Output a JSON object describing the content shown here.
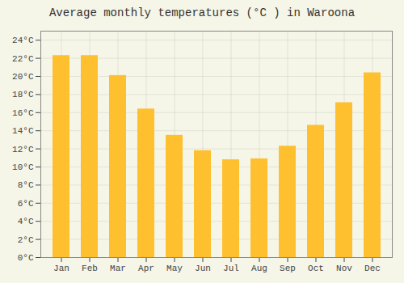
{
  "chart_data": {
    "type": "bar",
    "title": "Average monthly temperatures (°C ) in Waroona",
    "categories": [
      "Jan",
      "Feb",
      "Mar",
      "Apr",
      "May",
      "Jun",
      "Jul",
      "Aug",
      "Sep",
      "Oct",
      "Nov",
      "Dec"
    ],
    "values": [
      22.3,
      22.3,
      20.1,
      16.4,
      13.5,
      11.8,
      10.8,
      10.9,
      12.3,
      14.6,
      17.1,
      20.4
    ],
    "color": "#FFC030",
    "ylim": [
      0,
      25
    ],
    "yticks": [
      {
        "value": 0,
        "label": "0°C"
      },
      {
        "value": 2,
        "label": "2°C"
      },
      {
        "value": 4,
        "label": "4°C"
      },
      {
        "value": 6,
        "label": "6°C"
      },
      {
        "value": 8,
        "label": "8°C"
      },
      {
        "value": 10,
        "label": "10°C"
      },
      {
        "value": 12,
        "label": "12°C"
      },
      {
        "value": 14,
        "label": "14°C"
      },
      {
        "value": 16,
        "label": "16°C"
      },
      {
        "value": 18,
        "label": "18°C"
      },
      {
        "value": 20,
        "label": "20°C"
      },
      {
        "value": 22,
        "label": "22°C"
      },
      {
        "value": 24,
        "label": "24°C"
      }
    ],
    "grid": true
  }
}
